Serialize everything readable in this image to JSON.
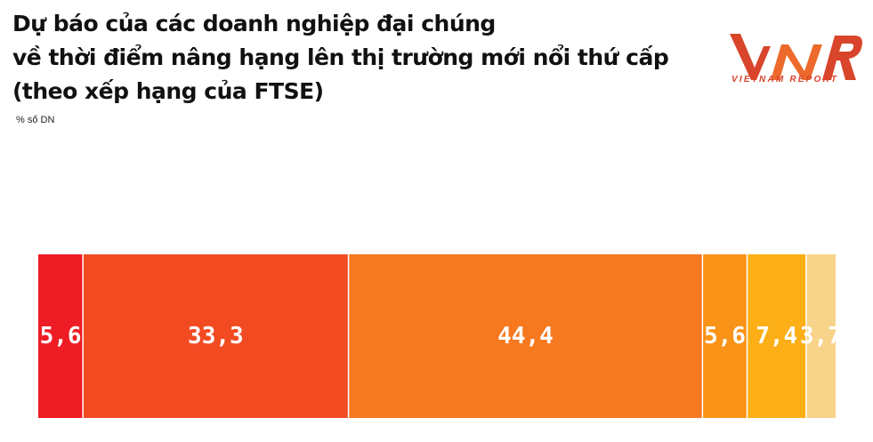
{
  "title": {
    "lines": [
      "Dự báo của các doanh nghiệp đại chúng",
      "về thời điểm nâng hạng lên thị trường mới nổi thứ cấp",
      "(theo xếp hạng của FTSE)"
    ]
  },
  "unit_label": "% số DN",
  "logo": {
    "mark": "VNR",
    "caption": "VIETNAM REPORT"
  },
  "chart_data": {
    "type": "bar",
    "orientation": "horizontal-stacked-100",
    "series": [
      {
        "value": 5.6,
        "label": "5,6",
        "color": "#ee1c24"
      },
      {
        "value": 33.3,
        "label": "33,3",
        "color": "#f24b22"
      },
      {
        "value": 44.4,
        "label": "44,4",
        "color": "#f6791f"
      },
      {
        "value": 5.6,
        "label": "5,6",
        "color": "#f89318"
      },
      {
        "value": 7.4,
        "label": "7,4",
        "color": "#fcaf17"
      },
      {
        "value": 3.7,
        "label": "3,7",
        "color": "#f8d38a"
      }
    ],
    "xlim": [
      0,
      100
    ],
    "grid": false,
    "legend": "none"
  }
}
